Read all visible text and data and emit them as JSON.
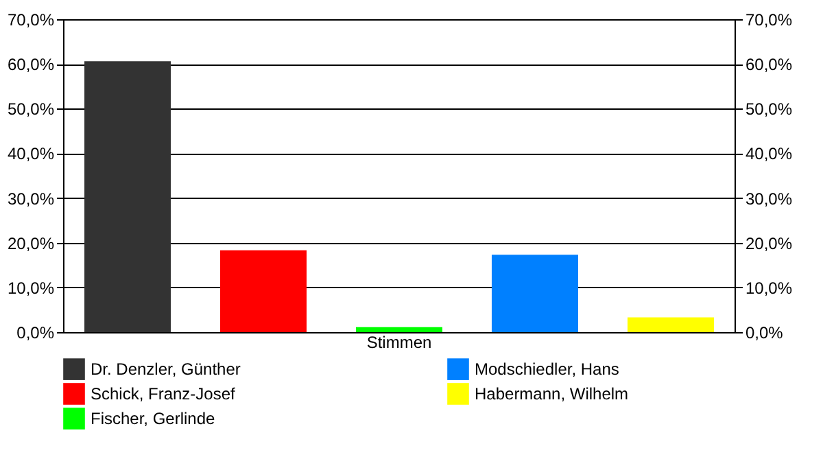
{
  "chart_data": {
    "type": "bar",
    "categories": [
      "Stimmen"
    ],
    "series": [
      {
        "name": "Dr. Denzler, Günther",
        "color": "#333333",
        "values": [
          60.6
        ]
      },
      {
        "name": "Schick, Franz-Josef",
        "color": "#ff0000",
        "values": [
          18.3
        ]
      },
      {
        "name": "Fischer, Gerlinde",
        "color": "#00ff00",
        "values": [
          1.1
        ]
      },
      {
        "name": "Modschiedler, Hans",
        "color": "#0080ff",
        "values": [
          17.3
        ]
      },
      {
        "name": "Habermann, Wilhelm",
        "color": "#ffff00",
        "values": [
          3.3
        ]
      }
    ],
    "ylim": [
      0,
      70
    ],
    "yticks": [
      {
        "value": 0,
        "label": "0,0%"
      },
      {
        "value": 10,
        "label": "10,0%"
      },
      {
        "value": 20,
        "label": "20,0%"
      },
      {
        "value": 30,
        "label": "30,0%"
      },
      {
        "value": 40,
        "label": "40,0%"
      },
      {
        "value": 50,
        "label": "50,0%"
      },
      {
        "value": 60,
        "label": "60,0%"
      },
      {
        "value": 70,
        "label": "70,0%"
      }
    ],
    "grid": "y",
    "legend": "bottom"
  }
}
